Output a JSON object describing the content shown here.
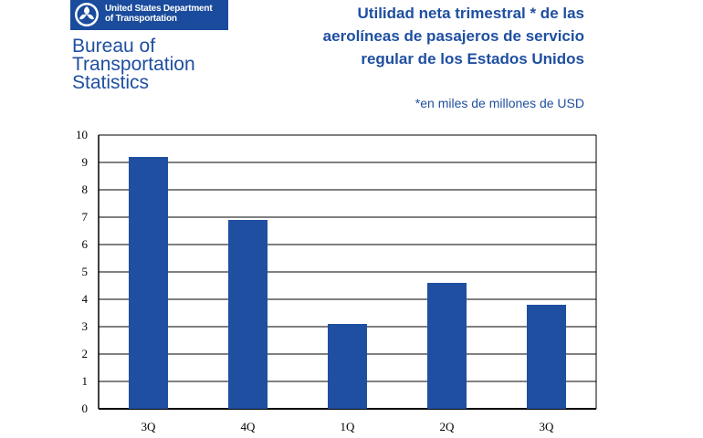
{
  "logo": {
    "agency_line_1": "United States Department",
    "agency_line_2": "of Transportation",
    "bureau_lines": [
      "Bureau of",
      "Transportation",
      "Statistics"
    ],
    "icon": "dot-seal-icon",
    "banner_color": "#1a4b9c",
    "text_color": "#1f4fa0"
  },
  "chart_data": {
    "type": "bar",
    "title_lines": [
      "Utilidad neta trimestral * de las",
      "aerolíneas de pasajeros de servicio",
      "regular de los Estados Unidos"
    ],
    "note": "*en miles de millones de USD",
    "categories": [
      "3Q",
      "4Q",
      "1Q",
      "2Q",
      "3Q"
    ],
    "values": [
      9.2,
      6.9,
      3.1,
      4.6,
      3.8
    ],
    "ylim": [
      0,
      10
    ],
    "yticks": [
      0,
      1,
      2,
      3,
      4,
      5,
      6,
      7,
      8,
      9,
      10
    ],
    "grid": true,
    "bar_color": "#1f4fa0"
  }
}
